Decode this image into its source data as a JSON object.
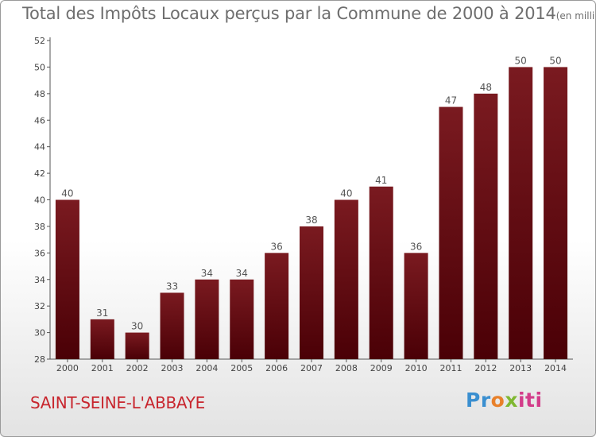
{
  "chart_data": {
    "type": "bar",
    "title": "Total des Impôts Locaux perçus par la Commune de 2000 à 2014",
    "subtitle": "(en milliers d'€)",
    "categories": [
      "2000",
      "2001",
      "2002",
      "2003",
      "2004",
      "2005",
      "2006",
      "2007",
      "2008",
      "2009",
      "2010",
      "2011",
      "2012",
      "2013",
      "2014"
    ],
    "values": [
      40,
      31,
      30,
      33,
      34,
      34,
      36,
      38,
      40,
      41,
      36,
      47,
      48,
      50,
      50
    ],
    "data_labels": [
      "40",
      "31",
      "30",
      "33",
      "34",
      "34",
      "36",
      "38",
      "40",
      "41",
      "36",
      "47",
      "48",
      "50",
      "50"
    ],
    "yticks": [
      "28",
      "30",
      "32",
      "34",
      "36",
      "38",
      "40",
      "42",
      "44",
      "46",
      "48",
      "50",
      "52"
    ],
    "ylim": [
      28,
      52
    ],
    "xlabel": "",
    "ylabel": "",
    "grid": false,
    "bar_color": "#7a1a20",
    "bar_color_dark": "#4a0006"
  },
  "footer": {
    "commune": "SAINT-SEINE-L'ABBAYE",
    "logo": {
      "part1": "Pr",
      "part2": "o",
      "part3": "x",
      "part4": "iti",
      "colors": [
        "#3a8fd0",
        "#e8802a",
        "#7fb832",
        "#d33c8a"
      ]
    }
  }
}
